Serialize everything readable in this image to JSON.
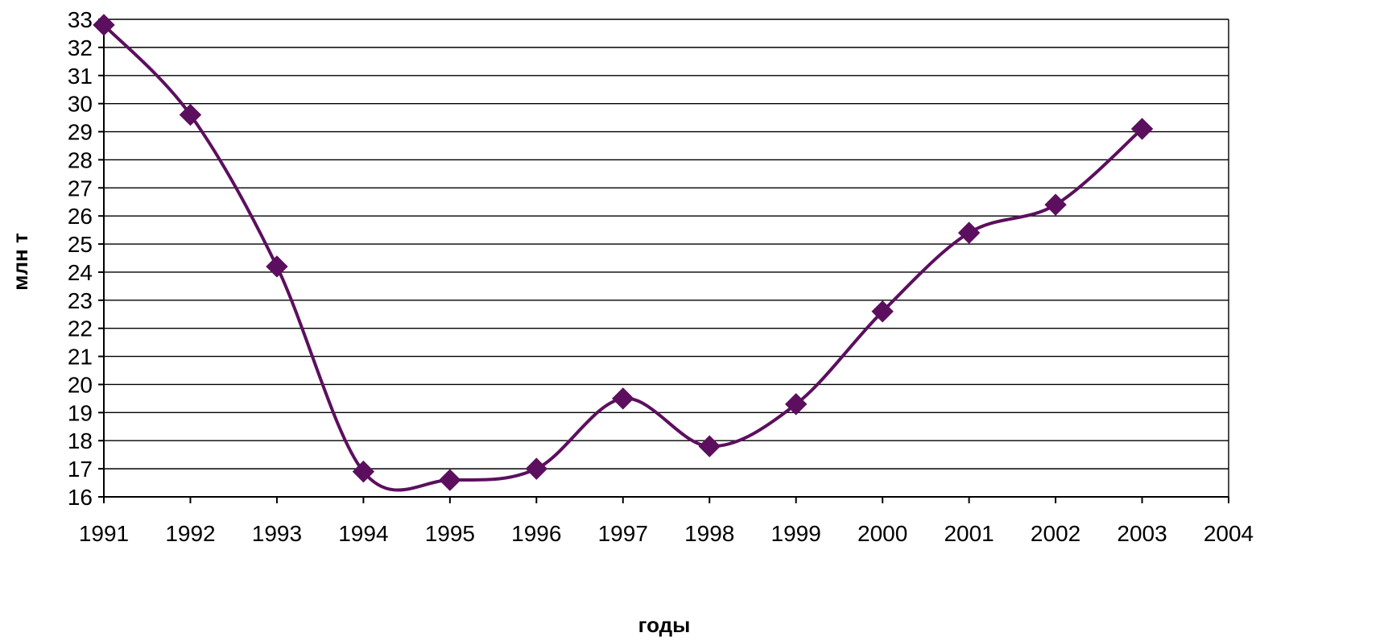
{
  "chart_data": {
    "type": "line",
    "title": "",
    "xlabel": "годы",
    "ylabel": "млн т",
    "xlim": [
      1991,
      2004
    ],
    "ylim": [
      16,
      33
    ],
    "x_ticks": [
      "1991",
      "1992",
      "1993",
      "1994",
      "1995",
      "1996",
      "1997",
      "1998",
      "1999",
      "2000",
      "2001",
      "2002",
      "2003",
      "2004"
    ],
    "y_ticks": [
      "16",
      "17",
      "18",
      "19",
      "20",
      "21",
      "22",
      "23",
      "24",
      "25",
      "26",
      "27",
      "28",
      "29",
      "30",
      "31",
      "32",
      "33"
    ],
    "grid": true,
    "smooth": true,
    "series": [
      {
        "x": [
          1991,
          1992,
          1993,
          1994,
          1995,
          1996,
          1997,
          1998,
          1999,
          2000,
          2001,
          2002,
          2003
        ],
        "values": [
          32.8,
          29.6,
          24.2,
          16.9,
          16.6,
          17.0,
          19.5,
          17.8,
          19.3,
          22.6,
          25.4,
          26.4,
          29.1
        ],
        "color": "#5c0f5e",
        "marker": "diamond"
      }
    ]
  }
}
